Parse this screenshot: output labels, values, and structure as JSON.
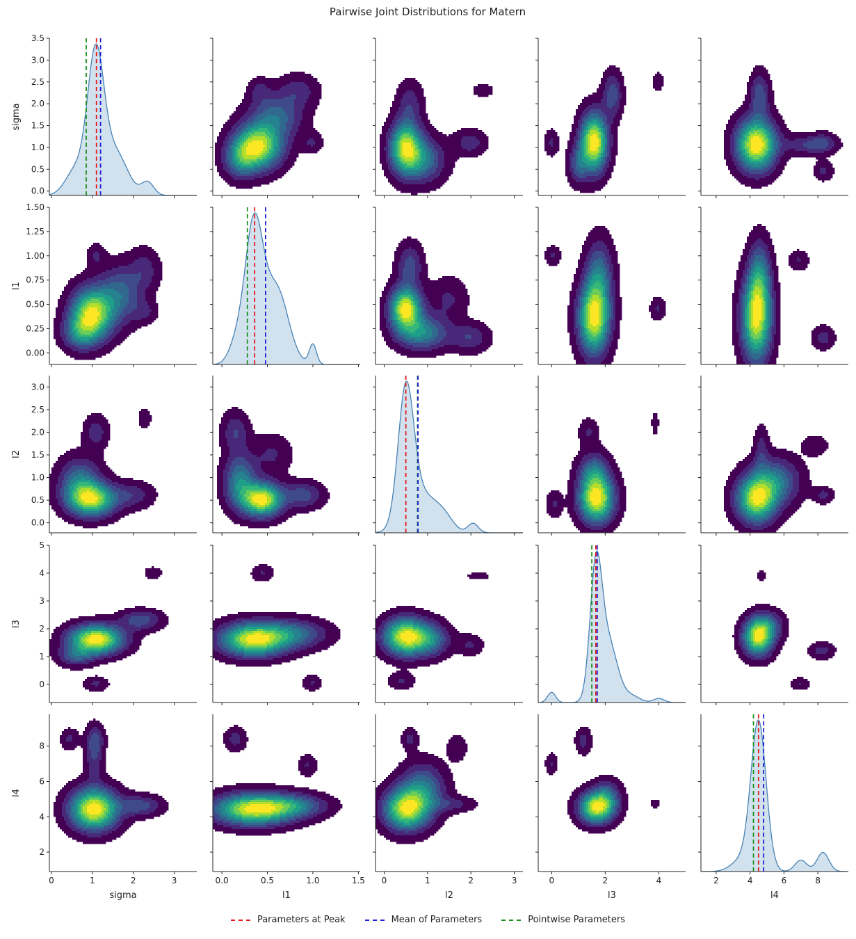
{
  "title": "Pairwise Joint Distributions for Matern",
  "variables": [
    "sigma",
    "l1",
    "l2",
    "l3",
    "l4"
  ],
  "legend": [
    {
      "label": "Parameters at Peak",
      "color": "#e41a1c"
    },
    {
      "label": "Mean of Parameters",
      "color": "#1f1fd6"
    },
    {
      "label": "Pointwise Parameters",
      "color": "#1a8f1a"
    }
  ],
  "colors": {
    "density_line": "#4682b4",
    "density_fill": "#c6d9ea",
    "kde_palette": "viridis"
  },
  "chart_data": {
    "type": "pairplot",
    "title": "Pairwise Joint Distributions for Matern",
    "variables": [
      "sigma",
      "l1",
      "l2",
      "l3",
      "l4"
    ],
    "axes": {
      "sigma": {
        "range": [
          -0.05,
          3.55
        ],
        "ticks": [
          0,
          1,
          2,
          3
        ],
        "ytick_labels": [
          "0.0",
          "0.5",
          "1.0",
          "1.5",
          "2.0",
          "2.5",
          "3.0",
          "3.5"
        ],
        "yticks": [
          0,
          0.5,
          1,
          1.5,
          2,
          2.5,
          3,
          3.5
        ],
        "yrange": [
          -0.1,
          3.5
        ]
      },
      "l1": {
        "range": [
          -0.1,
          1.52
        ],
        "ticks": [
          0,
          0.5,
          1,
          1.5
        ],
        "tick_labels": [
          "0.0",
          "0.5",
          "1.0",
          "1.5"
        ],
        "yticks": [
          0,
          0.25,
          0.5,
          0.75,
          1,
          1.25,
          1.5
        ],
        "ytick_labels": [
          "0.00",
          "0.25",
          "0.50",
          "0.75",
          "1.00",
          "1.25",
          "1.50"
        ],
        "yrange": [
          -0.12,
          1.5
        ]
      },
      "l2": {
        "range": [
          -0.2,
          3.2
        ],
        "ticks": [
          0,
          1,
          2,
          3
        ],
        "tick_labels": [
          "0",
          "1",
          "2",
          "3"
        ],
        "yticks": [
          0,
          0.5,
          1,
          1.5,
          2,
          2.5,
          3
        ],
        "ytick_labels": [
          "0.0",
          "0.5",
          "1.0",
          "1.5",
          "2.0",
          "2.5",
          "3.0"
        ],
        "yrange": [
          -0.22,
          3.25
        ]
      },
      "l3": {
        "range": [
          -0.5,
          5
        ],
        "ticks": [
          0,
          2,
          4
        ],
        "tick_labels": [
          "0",
          "2",
          "4"
        ],
        "yticks": [
          0,
          1,
          2,
          3,
          4,
          5
        ],
        "ytick_labels": [
          "0",
          "1",
          "2",
          "3",
          "4",
          "5"
        ],
        "yrange": [
          -0.65,
          5
        ]
      },
      "l4": {
        "range": [
          1.1,
          9.8
        ],
        "ticks": [
          2,
          4,
          6,
          8
        ],
        "tick_labels": [
          "2",
          "4",
          "6",
          "8"
        ],
        "yticks": [
          2,
          4,
          6,
          8
        ],
        "ytick_labels": [
          "2",
          "4",
          "6",
          "8"
        ],
        "yrange": [
          0.9,
          9.8
        ]
      }
    },
    "marginals": {
      "sigma": {
        "peak": 1.1,
        "mean": 1.2,
        "pointwise": 0.85,
        "components": [
          [
            0.62,
            1.08,
            0.2
          ],
          [
            0.2,
            1.55,
            0.3
          ],
          [
            0.06,
            2.35,
            0.15
          ],
          [
            0.12,
            0.6,
            0.25
          ]
        ]
      },
      "l1": {
        "peak": 0.36,
        "mean": 0.48,
        "pointwise": 0.28,
        "components": [
          [
            0.55,
            0.35,
            0.1
          ],
          [
            0.3,
            0.6,
            0.13
          ],
          [
            0.08,
            1.0,
            0.04
          ],
          [
            0.07,
            0.15,
            0.08
          ]
        ]
      },
      "l2": {
        "peak": 0.5,
        "mean": 0.78,
        "pointwise": 0.77,
        "components": [
          [
            0.7,
            0.5,
            0.18
          ],
          [
            0.2,
            0.9,
            0.35
          ],
          [
            0.05,
            1.4,
            0.2
          ],
          [
            0.05,
            2.05,
            0.12
          ]
        ]
      },
      "l3": {
        "peak": 1.65,
        "mean": 1.7,
        "pointwise": 1.5,
        "components": [
          [
            0.05,
            0.0,
            0.15
          ],
          [
            0.6,
            1.65,
            0.22
          ],
          [
            0.3,
            2.1,
            0.35
          ],
          [
            0.02,
            4.0,
            0.2
          ],
          [
            0.03,
            3.0,
            0.3
          ]
        ]
      },
      "l4": {
        "peak": 4.5,
        "mean": 4.8,
        "pointwise": 4.2,
        "components": [
          [
            0.78,
            4.5,
            0.45
          ],
          [
            0.06,
            7.0,
            0.35
          ],
          [
            0.1,
            8.3,
            0.35
          ],
          [
            0.06,
            3.5,
            0.6
          ]
        ]
      }
    },
    "joint_blobs": {
      "sigma|l1": [
        [
          1.0,
          0.4,
          0.35,
          0.18,
          0.5
        ],
        [
          0.7,
          0.2,
          0.3,
          0.12,
          0.2
        ],
        [
          1.7,
          0.6,
          0.35,
          0.2,
          0.2
        ],
        [
          2.3,
          0.85,
          0.25,
          0.15,
          0.1
        ],
        [
          2.3,
          0.42,
          0.2,
          0.08,
          0.08
        ],
        [
          1.1,
          1.0,
          0.15,
          0.08,
          0.08
        ]
      ],
      "sigma|l2": [
        [
          1.0,
          0.5,
          0.4,
          0.25,
          0.5
        ],
        [
          0.7,
          0.9,
          0.35,
          0.35,
          0.25
        ],
        [
          1.1,
          2.0,
          0.2,
          0.25,
          0.12
        ],
        [
          2.0,
          0.6,
          0.35,
          0.2,
          0.12
        ],
        [
          2.3,
          2.3,
          0.12,
          0.18,
          0.06
        ]
      ],
      "sigma|l3": [
        [
          1.1,
          1.6,
          0.45,
          0.35,
          0.5
        ],
        [
          0.6,
          1.0,
          0.3,
          0.25,
          0.15
        ],
        [
          2.2,
          2.3,
          0.35,
          0.25,
          0.15
        ],
        [
          1.1,
          0.0,
          0.2,
          0.18,
          0.08
        ],
        [
          2.5,
          4.0,
          0.15,
          0.15,
          0.06
        ]
      ],
      "sigma|l4": [
        [
          1.05,
          4.4,
          0.4,
          0.8,
          0.5
        ],
        [
          2.2,
          4.6,
          0.35,
          0.4,
          0.15
        ],
        [
          1.05,
          7.5,
          0.15,
          1.0,
          0.12
        ],
        [
          0.45,
          8.4,
          0.15,
          0.4,
          0.08
        ],
        [
          1.1,
          8.4,
          0.15,
          0.5,
          0.08
        ]
      ],
      "l1|l2": [
        [
          0.45,
          0.5,
          0.15,
          0.25,
          0.5
        ],
        [
          0.2,
          0.9,
          0.12,
          0.4,
          0.25
        ],
        [
          0.15,
          2.0,
          0.1,
          0.3,
          0.12
        ],
        [
          0.9,
          0.6,
          0.15,
          0.2,
          0.15
        ],
        [
          0.55,
          1.5,
          0.15,
          0.3,
          0.08
        ]
      ],
      "l1|l3": [
        [
          0.35,
          1.6,
          0.25,
          0.4,
          0.5
        ],
        [
          0.8,
          1.8,
          0.25,
          0.35,
          0.2
        ],
        [
          0.45,
          4.0,
          0.08,
          0.2,
          0.08
        ],
        [
          1.0,
          0.05,
          0.07,
          0.2,
          0.08
        ]
      ],
      "l1|l4": [
        [
          0.35,
          4.4,
          0.3,
          0.6,
          0.5
        ],
        [
          0.8,
          4.6,
          0.25,
          0.45,
          0.2
        ],
        [
          0.15,
          8.4,
          0.08,
          0.45,
          0.1
        ],
        [
          0.95,
          6.9,
          0.07,
          0.4,
          0.08
        ]
      ],
      "l2|l3": [
        [
          0.5,
          1.7,
          0.35,
          0.45,
          0.5
        ],
        [
          1.1,
          1.6,
          0.3,
          0.4,
          0.2
        ],
        [
          2.0,
          1.4,
          0.2,
          0.25,
          0.08
        ],
        [
          0.4,
          0.1,
          0.2,
          0.2,
          0.08
        ],
        [
          2.2,
          3.9,
          0.2,
          0.1,
          0.05
        ]
      ],
      "l2|l4": [
        [
          0.5,
          4.4,
          0.35,
          0.8,
          0.5
        ],
        [
          0.9,
          5.5,
          0.35,
          1.0,
          0.25
        ],
        [
          0.6,
          8.4,
          0.12,
          0.4,
          0.1
        ],
        [
          1.7,
          7.9,
          0.15,
          0.5,
          0.08
        ],
        [
          1.6,
          4.7,
          0.35,
          0.3,
          0.1
        ]
      ],
      "l3|l4": [
        [
          1.7,
          4.5,
          0.45,
          0.6,
          0.5
        ],
        [
          2.1,
          5.2,
          0.35,
          0.6,
          0.15
        ],
        [
          1.2,
          8.3,
          0.2,
          0.5,
          0.1
        ],
        [
          0.0,
          7.0,
          0.15,
          0.4,
          0.08
        ],
        [
          3.9,
          4.7,
          0.15,
          0.2,
          0.05
        ]
      ]
    }
  }
}
